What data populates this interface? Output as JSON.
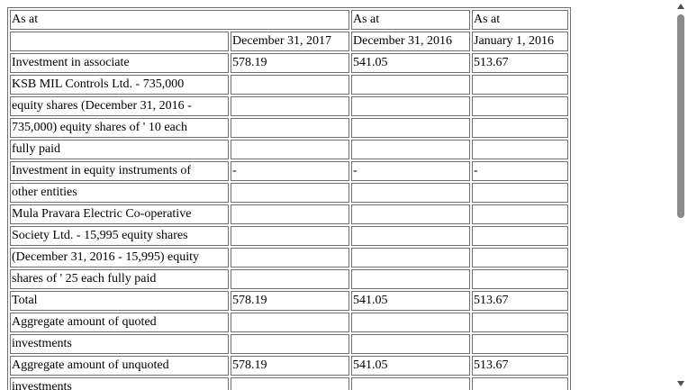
{
  "table": {
    "header": [
      "As at",
      "As at",
      "As at"
    ],
    "subheader": [
      "",
      "December 31, 2017",
      "December 31, 2016",
      "January 1, 2016"
    ],
    "rows": [
      [
        "Investment in associate",
        "578.19",
        "541.05",
        "513.67"
      ],
      [
        "KSB MIL Controls Ltd. - 735,000",
        "",
        "",
        ""
      ],
      [
        "equity shares (December 31, 2016 -",
        "",
        "",
        ""
      ],
      [
        "735,000) equity shares of ' 10 each",
        "",
        "",
        ""
      ],
      [
        "fully paid",
        "",
        "",
        ""
      ],
      [
        "Investment in equity instruments of",
        "-",
        "-",
        "-"
      ],
      [
        "other entities",
        "",
        "",
        ""
      ],
      [
        "Mula Pravara Electric Co-operative",
        "",
        "",
        ""
      ],
      [
        "Society Ltd. - 15,995 equity shares",
        "",
        "",
        ""
      ],
      [
        "(December 31, 2016 - 15,995) equity",
        "",
        "",
        ""
      ],
      [
        "shares of ' 25 each fully paid",
        "",
        "",
        ""
      ],
      [
        "Total",
        "578.19",
        "541.05",
        "513.67"
      ],
      [
        "Aggregate amount of quoted",
        "",
        "",
        ""
      ],
      [
        "investments",
        "",
        "",
        ""
      ],
      [
        "Aggregate amount of unquoted",
        "578.19",
        "541.05",
        "513.67"
      ],
      [
        "investments",
        "",
        "",
        ""
      ]
    ]
  },
  "colors": {
    "border": "#6f6f6f",
    "scroll_thumb": "#8a8a8a"
  }
}
